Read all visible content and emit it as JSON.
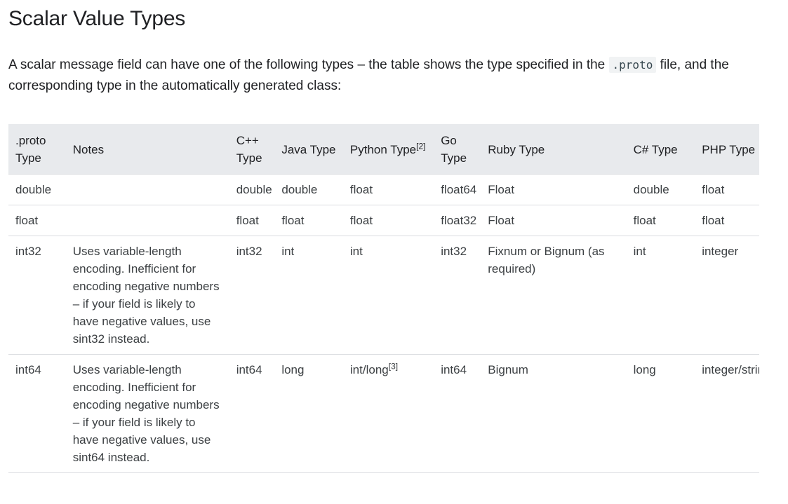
{
  "page": {
    "title": "Scalar Value Types",
    "intro_before_code": "A scalar message field can have one of the following types – the table shows the type specified in the ",
    "intro_code": ".proto",
    "intro_after_code": " file, and the corresponding type in the automatically generated class:"
  },
  "table": {
    "headers": {
      "proto": ".proto Type",
      "notes": "Notes",
      "cpp": "C++ Type",
      "java": "Java Type",
      "python": "Python Type",
      "python_sup": "[2]",
      "go": "Go Type",
      "ruby": "Ruby Type",
      "csharp": "C# Type",
      "php": "PHP Type"
    },
    "rows": [
      {
        "proto": "double",
        "notes": "",
        "cpp": "double",
        "java": "double",
        "python": "float",
        "python_sup": "",
        "go": "float64",
        "ruby": "Float",
        "csharp": "double",
        "php": "float"
      },
      {
        "proto": "float",
        "notes": "",
        "cpp": "float",
        "java": "float",
        "python": "float",
        "python_sup": "",
        "go": "float32",
        "ruby": "Float",
        "csharp": "float",
        "php": "float"
      },
      {
        "proto": "int32",
        "notes": "Uses variable-length encoding. Inefficient for encoding negative numbers – if your field is likely to have negative values, use sint32 instead.",
        "cpp": "int32",
        "java": "int",
        "python": "int",
        "python_sup": "",
        "go": "int32",
        "ruby": "Fixnum or Bignum (as required)",
        "csharp": "int",
        "php": "integer"
      },
      {
        "proto": "int64",
        "notes": "Uses variable-length encoding. Inefficient for encoding negative numbers – if your field is likely to have negative values, use sint64 instead.",
        "cpp": "int64",
        "java": "long",
        "python": "int/long",
        "python_sup": "[3]",
        "go": "int64",
        "ruby": "Bignum",
        "csharp": "long",
        "php": "integer/string"
      }
    ]
  }
}
